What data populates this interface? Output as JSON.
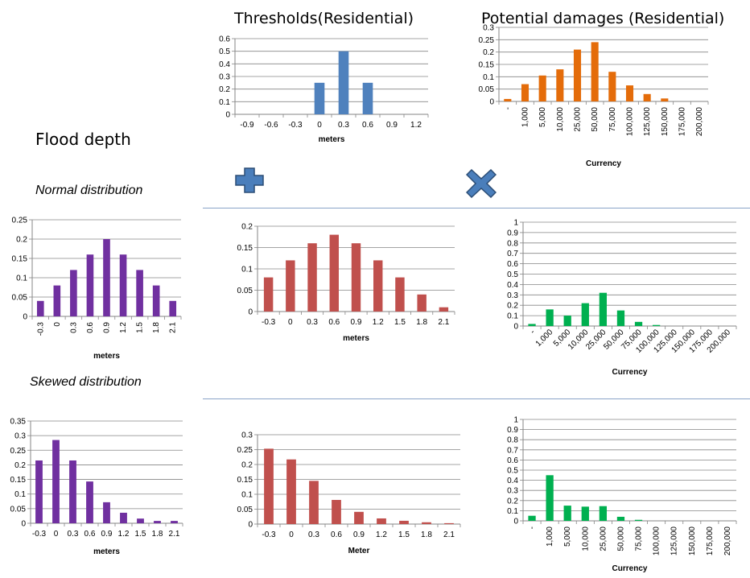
{
  "headings": {
    "flood_depth": "Flood depth",
    "normal": "Normal distribution",
    "skewed": "Skewed distribution"
  },
  "icons": {
    "plus": "plus-icon",
    "times": "multiply-icon",
    "plus_color": "#4a7ebb",
    "times_color": "#4a7ebb"
  },
  "chart_data": [
    {
      "id": "thresholds",
      "type": "bar",
      "title": "Thresholds(Residential)",
      "xlabel": "meters",
      "ylabel": "",
      "color": "#4f81bd",
      "categories": [
        "-0.9",
        "-0.6",
        "-0.3",
        "0",
        "0.3",
        "0.6",
        "0.9",
        "1.2"
      ],
      "values": [
        0,
        0,
        0,
        0.25,
        0.5,
        0.25,
        0,
        0
      ],
      "yticks": [
        "0",
        "0.1",
        "0.2",
        "0.3",
        "0.4",
        "0.5",
        "0.6"
      ],
      "ylim": [
        0,
        0.6
      ],
      "grid": true
    },
    {
      "id": "damages",
      "type": "bar",
      "title": "Potential damages (Residential)",
      "xlabel": "Currency",
      "ylabel": "",
      "color": "#e46c0a",
      "categories": [
        "-",
        "1,000",
        "5,000",
        "10,000",
        "25,000",
        "50,000",
        "75,000",
        "100,000",
        "125,000",
        "150,000",
        "175,000",
        "200,000"
      ],
      "values": [
        0.01,
        0.07,
        0.105,
        0.13,
        0.21,
        0.24,
        0.12,
        0.065,
        0.03,
        0.012,
        0,
        0
      ],
      "yticks": [
        "0",
        "0.05",
        "0.1",
        "0.15",
        "0.2",
        "0.25",
        "0.3"
      ],
      "ylim": [
        0,
        0.3
      ],
      "grid": true
    },
    {
      "id": "normal-depth",
      "type": "bar",
      "xlabel": "meters",
      "ylabel": "",
      "color": "#7030a0",
      "categories": [
        "-0.3",
        "0",
        "0.3",
        "0.6",
        "0.9",
        "1.2",
        "1.5",
        "1.8",
        "2.1"
      ],
      "values": [
        0.04,
        0.08,
        0.12,
        0.16,
        0.2,
        0.16,
        0.12,
        0.08,
        0.04
      ],
      "yticks": [
        "0",
        "0.05",
        "0.1",
        "0.15",
        "0.2",
        "0.25"
      ],
      "ylim": [
        0,
        0.25
      ],
      "grid": true
    },
    {
      "id": "normal-result",
      "type": "bar",
      "xlabel": "meters",
      "ylabel": "",
      "color": "#c0504d",
      "categories": [
        "-0.3",
        "0",
        "0.3",
        "0.6",
        "0.9",
        "1.2",
        "1.5",
        "1.8",
        "2.1"
      ],
      "values": [
        0.08,
        0.12,
        0.16,
        0.18,
        0.16,
        0.12,
        0.08,
        0.04,
        0.01
      ],
      "yticks": [
        "0",
        "0.05",
        "0.1",
        "0.15",
        "0.2"
      ],
      "ylim": [
        0,
        0.2
      ],
      "grid": true
    },
    {
      "id": "normal-damage",
      "type": "bar",
      "xlabel": "Currency",
      "ylabel": "",
      "color": "#00b050",
      "categories": [
        "-",
        "1,000",
        "5,000",
        "10,000",
        "25,000",
        "50,000",
        "75,000",
        "100,000",
        "125,000",
        "150,000",
        "175,000",
        "200,000"
      ],
      "values": [
        0.02,
        0.16,
        0.1,
        0.22,
        0.32,
        0.15,
        0.04,
        0.01,
        0,
        0,
        0,
        0
      ],
      "yticks": [
        "0",
        "0.1",
        "0.2",
        "0.3",
        "0.4",
        "0.5",
        "0.6",
        "0.7",
        "0.8",
        "0.9",
        "1"
      ],
      "ylim": [
        0,
        1
      ],
      "grid": true
    },
    {
      "id": "skewed-depth",
      "type": "bar",
      "xlabel": "meters",
      "ylabel": "",
      "color": "#7030a0",
      "categories": [
        "-0.3",
        "0",
        "0.3",
        "0.6",
        "0.9",
        "1.2",
        "1.5",
        "1.8",
        "2.1"
      ],
      "values": [
        0.215,
        0.285,
        0.215,
        0.143,
        0.072,
        0.036,
        0.016,
        0.008,
        0.008
      ],
      "yticks": [
        "0",
        "0.05",
        "0.1",
        "0.15",
        "0.2",
        "0.25",
        "0.3",
        "0.35"
      ],
      "ylim": [
        0,
        0.35
      ],
      "grid": true
    },
    {
      "id": "skewed-result",
      "type": "bar",
      "xlabel": "Meter",
      "ylabel": "",
      "color": "#c0504d",
      "categories": [
        "-0.3",
        "0",
        "0.3",
        "0.6",
        "0.9",
        "1.2",
        "1.5",
        "1.8",
        "2.1"
      ],
      "values": [
        0.253,
        0.217,
        0.145,
        0.081,
        0.041,
        0.019,
        0.011,
        0.006,
        0.003
      ],
      "yticks": [
        "0",
        "0.05",
        "0.1",
        "0.15",
        "0.2",
        "0.25",
        "0.3"
      ],
      "ylim": [
        0,
        0.3
      ],
      "grid": true
    },
    {
      "id": "skewed-damage",
      "type": "bar",
      "xlabel": "Currency",
      "ylabel": "",
      "color": "#00b050",
      "categories": [
        "-",
        "1,000",
        "5,000",
        "10,000",
        "25,000",
        "50,000",
        "75,000",
        "100,000",
        "125,000",
        "150,000",
        "175,000",
        "200,000"
      ],
      "values": [
        0.05,
        0.45,
        0.15,
        0.14,
        0.145,
        0.04,
        0.01,
        0,
        0,
        0,
        0,
        0
      ],
      "yticks": [
        "0",
        "0.1",
        "0.2",
        "0.3",
        "0.4",
        "0.5",
        "0.6",
        "0.7",
        "0.8",
        "0.9",
        "1"
      ],
      "ylim": [
        0,
        1
      ],
      "grid": true
    }
  ]
}
